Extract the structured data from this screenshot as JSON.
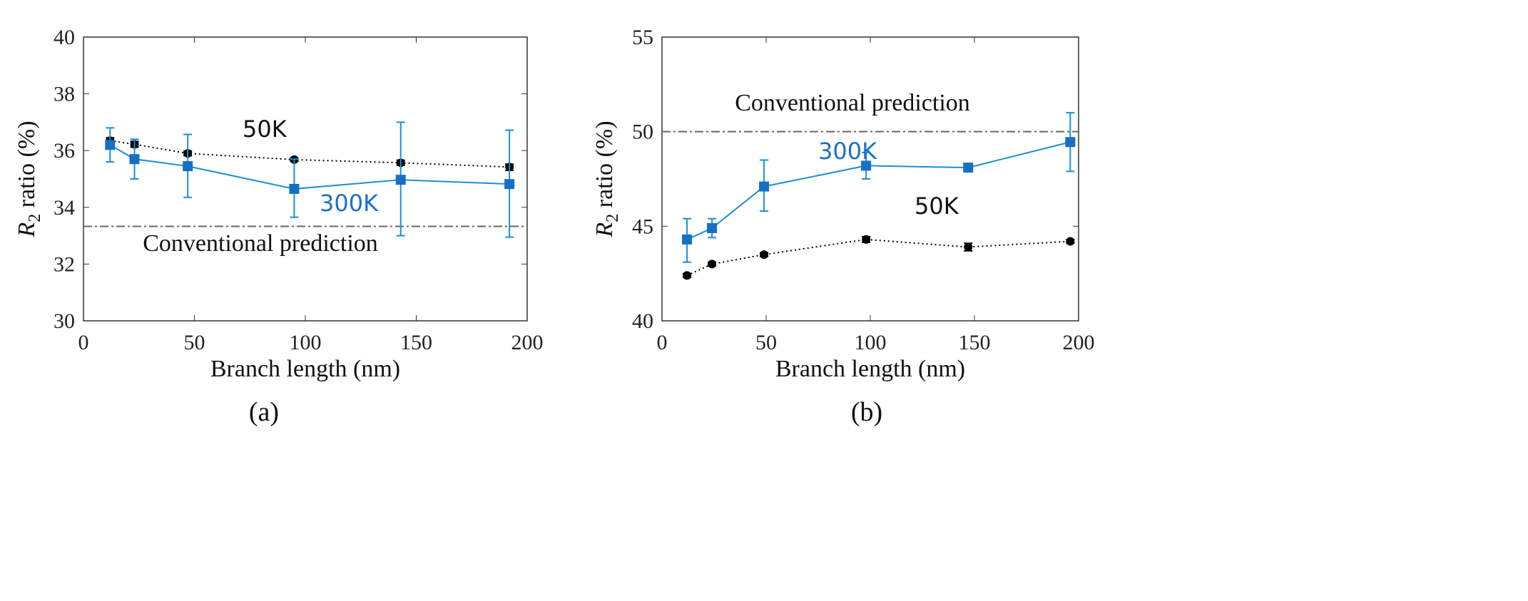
{
  "chart_data": [
    {
      "type": "line",
      "panel_label": "(a)",
      "xlabel": "Branch length (nm)",
      "ylabel_main": "R",
      "ylabel_sub": "2",
      "ylabel_rest": " ratio (%)",
      "xlim": [
        0,
        200
      ],
      "ylim": [
        30,
        40
      ],
      "xticks": [
        0,
        50,
        100,
        150,
        200
      ],
      "yticks": [
        30,
        32,
        34,
        36,
        38,
        40
      ],
      "reference": {
        "label": "Conventional prediction",
        "y": 33.33
      },
      "series": [
        {
          "name": "50K",
          "color": "#000000",
          "style": "dotted",
          "marker": "circle",
          "x": [
            12,
            23,
            47,
            95,
            143,
            192
          ],
          "y": [
            36.35,
            36.22,
            35.9,
            35.68,
            35.57,
            35.42
          ],
          "err_low": [
            36.25,
            36.12,
            35.82,
            35.62,
            35.48,
            35.3
          ],
          "err_high": [
            36.45,
            36.32,
            35.98,
            35.74,
            35.66,
            35.52
          ]
        },
        {
          "name": "300K",
          "color": "#1a8fd6",
          "style": "solid",
          "marker": "square",
          "x": [
            12,
            23,
            47,
            95,
            143,
            192
          ],
          "y": [
            36.2,
            35.7,
            35.45,
            34.65,
            34.97,
            34.82
          ],
          "err_low": [
            35.6,
            35.0,
            34.35,
            33.65,
            33.0,
            32.95
          ],
          "err_high": [
            36.8,
            36.4,
            36.57,
            35.7,
            37.0,
            36.72
          ]
        }
      ]
    },
    {
      "type": "line",
      "panel_label": "(b)",
      "xlabel": "Branch length (nm)",
      "ylabel_main": "R",
      "ylabel_sub": "2",
      "ylabel_rest": " ratio (%)",
      "xlim": [
        0,
        200
      ],
      "ylim": [
        40,
        55
      ],
      "xticks": [
        0,
        50,
        100,
        150,
        200
      ],
      "yticks": [
        40,
        45,
        50,
        55
      ],
      "reference": {
        "label": "Conventional prediction",
        "y": 50
      },
      "series": [
        {
          "name": "50K",
          "color": "#000000",
          "style": "dotted",
          "marker": "circle",
          "x": [
            12,
            24,
            49,
            98,
            147,
            196
          ],
          "y": [
            42.4,
            43.0,
            43.5,
            44.3,
            43.9,
            44.2
          ],
          "err_low": [
            42.3,
            42.9,
            43.4,
            44.15,
            43.7,
            44.1
          ],
          "err_high": [
            42.5,
            43.1,
            43.6,
            44.45,
            44.1,
            44.3
          ]
        },
        {
          "name": "300K",
          "color": "#1a8fd6",
          "style": "solid",
          "marker": "square",
          "x": [
            12,
            24,
            49,
            98,
            147,
            196
          ],
          "y": [
            44.3,
            44.9,
            47.1,
            48.2,
            48.1,
            49.45
          ],
          "err_low": [
            43.1,
            44.4,
            45.8,
            47.5,
            47.9,
            47.9
          ],
          "err_high": [
            45.4,
            45.4,
            48.5,
            48.9,
            48.3,
            51.0
          ]
        }
      ]
    }
  ]
}
